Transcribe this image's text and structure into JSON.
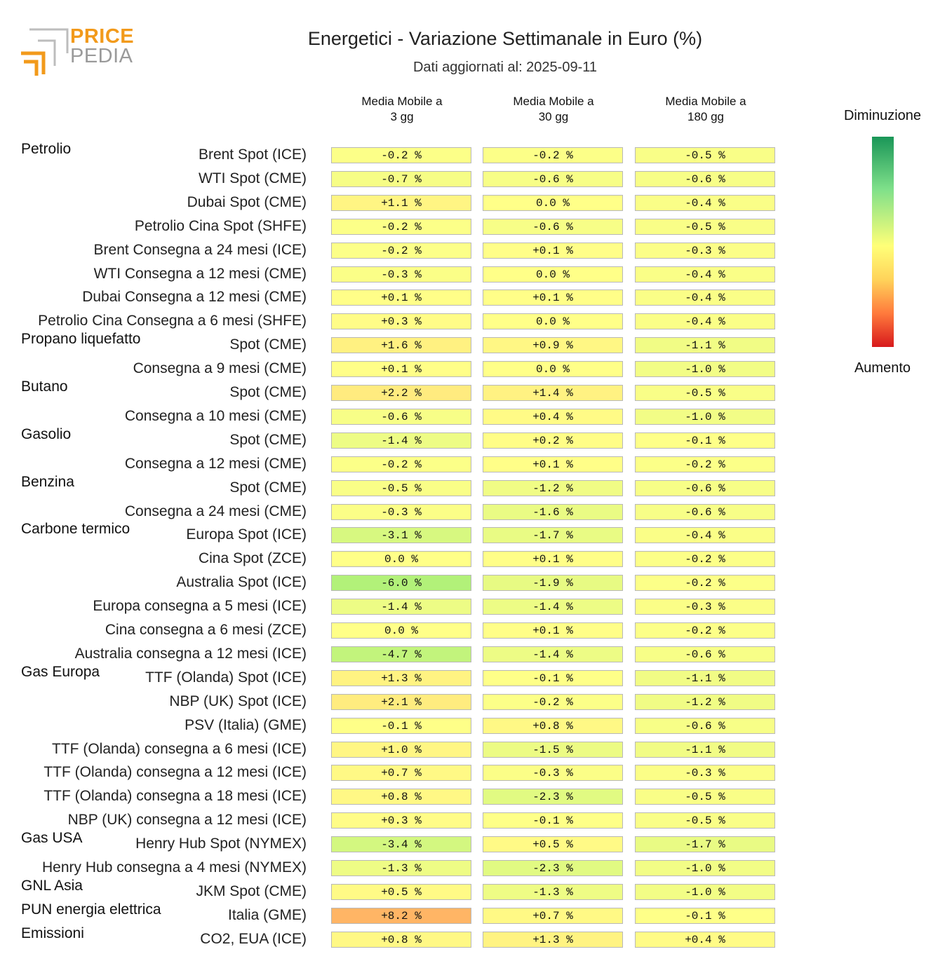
{
  "logo": {
    "line1": "PRICE",
    "line2": "PEDIA",
    "primary_color": "#f29a1b",
    "secondary_color": "#9a9a9a"
  },
  "title": "Energetici - Variazione Settimanale in Euro (%)",
  "subtitle": "Dati aggiornati al: 2025-09-11",
  "legend": {
    "top_label": "Diminuzione",
    "bottom_label": "Aumento"
  },
  "chart_data": {
    "type": "table",
    "columns": [
      "Media Mobile a\n3 gg",
      "Media Mobile a\n30 gg",
      "Media Mobile a\n180 gg"
    ],
    "color_scale": {
      "negative": "green",
      "zero": "yellow",
      "positive": "red"
    },
    "rows": [
      {
        "group": "Petrolio",
        "label": "Brent Spot (ICE)",
        "values": [
          "-0.2 %",
          "-0.2 %",
          "-0.5 %"
        ]
      },
      {
        "group": "",
        "label": "WTI Spot (CME)",
        "values": [
          "-0.7 %",
          "-0.6 %",
          "-0.6 %"
        ]
      },
      {
        "group": "",
        "label": "Dubai Spot (CME)",
        "values": [
          "+1.1 %",
          "0.0 %",
          "-0.4 %"
        ]
      },
      {
        "group": "",
        "label": "Petrolio Cina Spot (SHFE)",
        "values": [
          "-0.2 %",
          "-0.6 %",
          "-0.5 %"
        ]
      },
      {
        "group": "",
        "label": "Brent Consegna a 24 mesi (ICE)",
        "values": [
          "-0.2 %",
          "+0.1 %",
          "-0.3 %"
        ]
      },
      {
        "group": "",
        "label": "WTI Consegna a 12 mesi (CME)",
        "values": [
          "-0.3 %",
          "0.0 %",
          "-0.4 %"
        ]
      },
      {
        "group": "",
        "label": "Dubai Consegna a 12 mesi (CME)",
        "values": [
          "+0.1 %",
          "+0.1 %",
          "-0.4 %"
        ]
      },
      {
        "group": "",
        "label": "Petrolio Cina Consegna a 6 mesi (SHFE)",
        "values": [
          "+0.3 %",
          "0.0 %",
          "-0.4 %"
        ]
      },
      {
        "group": "Propano liquefatto",
        "label": "Spot (CME)",
        "values": [
          "+1.6 %",
          "+0.9 %",
          "-1.1 %"
        ]
      },
      {
        "group": "",
        "label": "Consegna a 9 mesi (CME)",
        "values": [
          "+0.1 %",
          "0.0 %",
          "-1.0 %"
        ]
      },
      {
        "group": "Butano",
        "label": "Spot (CME)",
        "values": [
          "+2.2 %",
          "+1.4 %",
          "-0.5 %"
        ]
      },
      {
        "group": "",
        "label": "Consegna a 10 mesi (CME)",
        "values": [
          "-0.6 %",
          "+0.4 %",
          "-1.0 %"
        ]
      },
      {
        "group": "Gasolio",
        "label": "Spot (CME)",
        "values": [
          "-1.4 %",
          "+0.2 %",
          "-0.1 %"
        ]
      },
      {
        "group": "",
        "label": "Consegna a 12 mesi (CME)",
        "values": [
          "-0.2 %",
          "+0.1 %",
          "-0.2 %"
        ]
      },
      {
        "group": "Benzina",
        "label": "Spot (CME)",
        "values": [
          "-0.5 %",
          "-1.2 %",
          "-0.6 %"
        ]
      },
      {
        "group": "",
        "label": "Consegna a 24 mesi (CME)",
        "values": [
          "-0.3 %",
          "-1.6 %",
          "-0.6 %"
        ]
      },
      {
        "group": "Carbone termico",
        "label": "Europa Spot (ICE)",
        "values": [
          "-3.1 %",
          "-1.7 %",
          "-0.4 %"
        ]
      },
      {
        "group": "",
        "label": "Cina Spot (ZCE)",
        "values": [
          "0.0 %",
          "+0.1 %",
          "-0.2 %"
        ]
      },
      {
        "group": "",
        "label": "Australia Spot (ICE)",
        "values": [
          "-6.0 %",
          "-1.9 %",
          "-0.2 %"
        ]
      },
      {
        "group": "",
        "label": "Europa consegna a 5 mesi (ICE)",
        "values": [
          "-1.4 %",
          "-1.4 %",
          "-0.3 %"
        ]
      },
      {
        "group": "",
        "label": "Cina consegna a 6 mesi (ZCE)",
        "values": [
          "0.0 %",
          "+0.1 %",
          "-0.2 %"
        ]
      },
      {
        "group": "",
        "label": "Australia consegna a 12 mesi (ICE)",
        "values": [
          "-4.7 %",
          "-1.4 %",
          "-0.6 %"
        ]
      },
      {
        "group": "Gas Europa",
        "label": "TTF (Olanda) Spot (ICE)",
        "values": [
          "+1.3 %",
          "-0.1 %",
          "-1.1 %"
        ]
      },
      {
        "group": "",
        "label": "NBP (UK) Spot (ICE)",
        "values": [
          "+2.1 %",
          "-0.2 %",
          "-1.2 %"
        ]
      },
      {
        "group": "",
        "label": "PSV (Italia) (GME)",
        "values": [
          "-0.1 %",
          "+0.8 %",
          "-0.6 %"
        ]
      },
      {
        "group": "",
        "label": "TTF (Olanda) consegna a 6 mesi (ICE)",
        "values": [
          "+1.0 %",
          "-1.5 %",
          "-1.1 %"
        ]
      },
      {
        "group": "",
        "label": "TTF (Olanda) consegna a 12 mesi (ICE)",
        "values": [
          "+0.7 %",
          "-0.3 %",
          "-0.3 %"
        ]
      },
      {
        "group": "",
        "label": "TTF (Olanda) consegna a 18 mesi (ICE)",
        "values": [
          "+0.8 %",
          "-2.3 %",
          "-0.5 %"
        ]
      },
      {
        "group": "",
        "label": "NBP (UK) consegna a 12 mesi (ICE)",
        "values": [
          "+0.3 %",
          "-0.1 %",
          "-0.5 %"
        ]
      },
      {
        "group": "Gas USA",
        "label": "Henry Hub Spot (NYMEX)",
        "values": [
          "-3.4 %",
          "+0.5 %",
          "-1.7 %"
        ]
      },
      {
        "group": "",
        "label": "Henry Hub consegna a 4 mesi (NYMEX)",
        "values": [
          "-1.3 %",
          "-2.3 %",
          "-1.0 %"
        ]
      },
      {
        "group": "GNL Asia",
        "label": "JKM Spot (CME)",
        "values": [
          "+0.5 %",
          "-1.3 %",
          "-1.0 %"
        ]
      },
      {
        "group": "PUN energia elettrica",
        "label": "Italia (GME)",
        "values": [
          "+8.2 %",
          "+0.7 %",
          "-0.1 %"
        ]
      },
      {
        "group": "Emissioni",
        "label": "CO2, EUA (ICE)",
        "values": [
          "+0.8 %",
          "+1.3 %",
          "+0.4 %"
        ]
      }
    ]
  }
}
